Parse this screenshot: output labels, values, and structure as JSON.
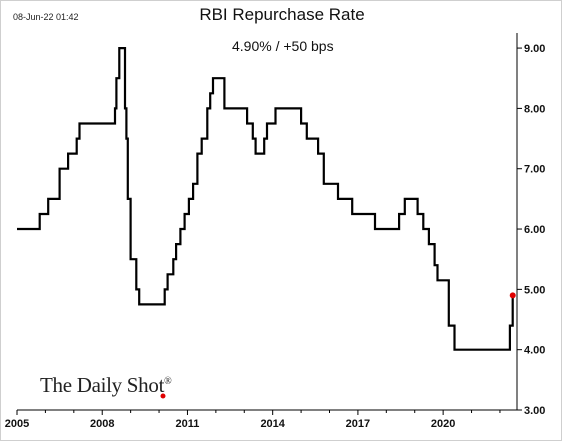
{
  "timestamp": "08-Jun-22 01:42",
  "logo_text": "The Daily Shot",
  "logo_mark": "®",
  "chart_data": {
    "type": "line",
    "title": "RBI Repurchase Rate",
    "annotation": "4.90%  /  +50 bps",
    "xlabel": "",
    "ylabel": "",
    "xlim": [
      2005,
      2022.6
    ],
    "ylim": [
      3.0,
      9.25
    ],
    "x_ticks": [
      2005,
      2008,
      2011,
      2014,
      2017,
      2020
    ],
    "x_tick_labels": [
      "2005",
      "2008",
      "2011",
      "2014",
      "2017",
      "2020"
    ],
    "y_ticks": [
      3.0,
      4.0,
      5.0,
      6.0,
      7.0,
      8.0,
      9.0
    ],
    "y_tick_labels": [
      "3.00",
      "4.00",
      "5.00",
      "6.00",
      "7.00",
      "8.00",
      "9.00"
    ],
    "y_axis_side": "right",
    "grid": false,
    "line_color": "#000000",
    "last_point_color": "#e00000",
    "series": [
      {
        "step": true,
        "points": [
          [
            2005.0,
            6.0
          ],
          [
            2005.8,
            6.25
          ],
          [
            2006.1,
            6.5
          ],
          [
            2006.5,
            7.0
          ],
          [
            2006.8,
            7.25
          ],
          [
            2007.1,
            7.5
          ],
          [
            2007.2,
            7.75
          ],
          [
            2008.45,
            8.0
          ],
          [
            2008.5,
            8.5
          ],
          [
            2008.6,
            9.0
          ],
          [
            2008.8,
            8.0
          ],
          [
            2008.85,
            7.5
          ],
          [
            2008.9,
            6.5
          ],
          [
            2009.0,
            5.5
          ],
          [
            2009.2,
            5.0
          ],
          [
            2009.3,
            4.75
          ],
          [
            2010.2,
            5.0
          ],
          [
            2010.3,
            5.25
          ],
          [
            2010.5,
            5.5
          ],
          [
            2010.6,
            5.75
          ],
          [
            2010.75,
            6.0
          ],
          [
            2010.9,
            6.25
          ],
          [
            2011.05,
            6.5
          ],
          [
            2011.2,
            6.75
          ],
          [
            2011.35,
            7.25
          ],
          [
            2011.5,
            7.5
          ],
          [
            2011.7,
            8.0
          ],
          [
            2011.8,
            8.25
          ],
          [
            2011.9,
            8.5
          ],
          [
            2012.3,
            8.0
          ],
          [
            2013.1,
            7.75
          ],
          [
            2013.3,
            7.5
          ],
          [
            2013.4,
            7.25
          ],
          [
            2013.7,
            7.5
          ],
          [
            2013.8,
            7.75
          ],
          [
            2014.1,
            8.0
          ],
          [
            2015.0,
            7.75
          ],
          [
            2015.2,
            7.5
          ],
          [
            2015.6,
            7.25
          ],
          [
            2015.8,
            6.75
          ],
          [
            2016.3,
            6.5
          ],
          [
            2016.8,
            6.25
          ],
          [
            2017.6,
            6.0
          ],
          [
            2018.45,
            6.25
          ],
          [
            2018.65,
            6.5
          ],
          [
            2019.1,
            6.25
          ],
          [
            2019.3,
            6.0
          ],
          [
            2019.5,
            5.75
          ],
          [
            2019.7,
            5.4
          ],
          [
            2019.8,
            5.15
          ],
          [
            2020.2,
            4.4
          ],
          [
            2020.4,
            4.0
          ],
          [
            2022.35,
            4.4
          ],
          [
            2022.45,
            4.9
          ]
        ]
      }
    ],
    "last_point": [
      2022.45,
      4.9
    ]
  }
}
